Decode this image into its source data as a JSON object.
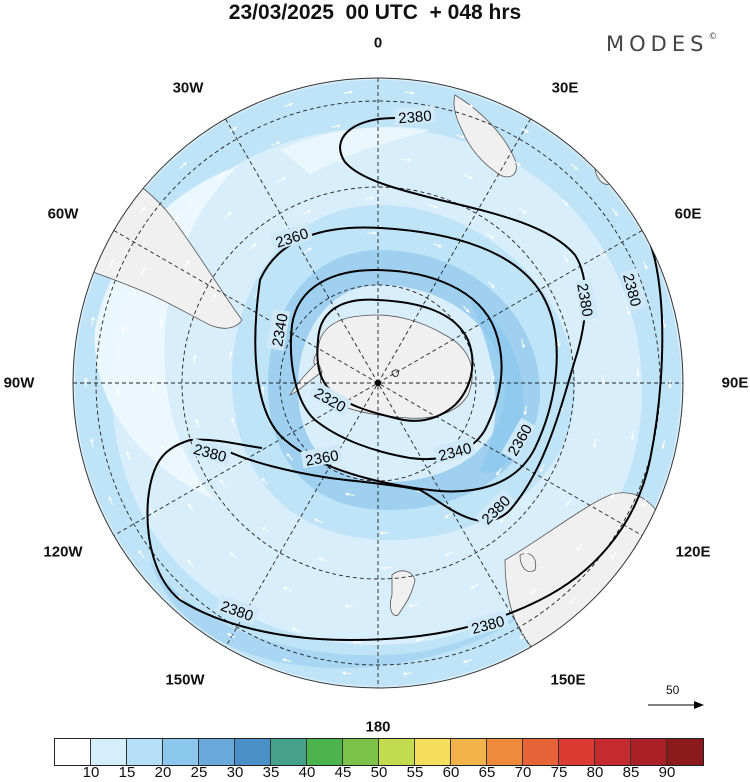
{
  "title": "23/03/2025  00 UTC  + 048 hrs",
  "brand": "MODES",
  "brand_mark": "©",
  "longitude_labels": [
    {
      "id": "lon-0",
      "text": "0"
    },
    {
      "id": "lon-30e",
      "text": "30E"
    },
    {
      "id": "lon-60e",
      "text": "60E"
    },
    {
      "id": "lon-90e",
      "text": "90E"
    },
    {
      "id": "lon-120e",
      "text": "120E"
    },
    {
      "id": "lon-150e",
      "text": "150E"
    },
    {
      "id": "lon-180",
      "text": "180"
    },
    {
      "id": "lon-150w",
      "text": "150W"
    },
    {
      "id": "lon-120w",
      "text": "120W"
    },
    {
      "id": "lon-90w",
      "text": "90W"
    },
    {
      "id": "lon-60w",
      "text": "60W"
    },
    {
      "id": "lon-30w",
      "text": "30W"
    }
  ],
  "contour_labels": [
    "2380",
    "2360",
    "2340",
    "2320",
    "2380",
    "2380",
    "2380",
    "2360",
    "2380",
    "2340",
    "2360",
    "2380",
    "2380"
  ],
  "reference_vector_label": "50",
  "colorbar": {
    "colors": [
      "#ffffff",
      "#d4eefb",
      "#b4dff6",
      "#8cc8ee",
      "#6aa9dc",
      "#4a8fc8",
      "#46a08a",
      "#4db34d",
      "#7cc34a",
      "#c3db4f",
      "#f4de5a",
      "#f4b34a",
      "#ef8a3c",
      "#e8623a",
      "#db3b32",
      "#c52a2e",
      "#ab1f26",
      "#8c1a1c"
    ],
    "labels": [
      "10",
      "15",
      "20",
      "25",
      "30",
      "35",
      "40",
      "45",
      "50",
      "55",
      "60",
      "65",
      "70",
      "75",
      "80",
      "85",
      "90"
    ]
  }
}
